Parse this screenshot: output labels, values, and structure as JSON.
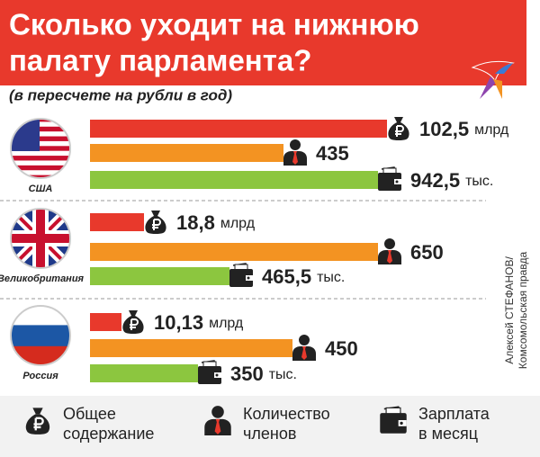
{
  "header": {
    "title_lines": [
      "Сколько уходит на нижнюю",
      "палату парламента?"
    ],
    "subtitle": "(в пересчете на рубли в год)"
  },
  "countries": [
    {
      "name": "США",
      "rows": [
        {
          "value": "102,5",
          "unit": "млрд"
        },
        {
          "value": "435",
          "unit": null
        },
        {
          "value": "942,5",
          "unit": "тыс."
        }
      ]
    },
    {
      "name": "Великобритания",
      "rows": [
        {
          "value": "18,8",
          "unit": "млрд"
        },
        {
          "value": "650",
          "unit": null
        },
        {
          "value": "465,5",
          "unit": "тыс."
        }
      ]
    },
    {
      "name": "Россия",
      "rows": [
        {
          "value": "10,13",
          "unit": "млрд"
        },
        {
          "value": "450",
          "unit": null
        },
        {
          "value": "350",
          "unit": "тыс."
        }
      ]
    }
  ],
  "legend": [
    {
      "lines": [
        "Общее",
        "содержание"
      ]
    },
    {
      "lines": [
        "Количество",
        "членов"
      ]
    },
    {
      "lines": [
        "Зарплата",
        "в месяц"
      ]
    }
  ],
  "credit": [
    "Алексей СТЕФАНОВ/",
    "Комсомольская правда"
  ]
}
